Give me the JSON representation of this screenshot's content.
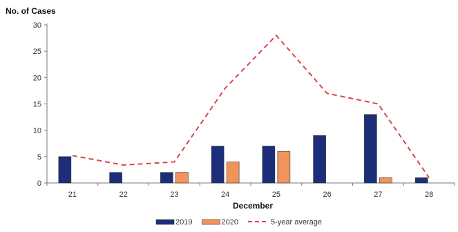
{
  "chart_data": {
    "type": "bar",
    "ylabel": "No. of Cases",
    "xlabel": "December",
    "categories": [
      "21",
      "22",
      "23",
      "24",
      "25",
      "26",
      "27",
      "28"
    ],
    "ylim": [
      0,
      30
    ],
    "yticks": [
      0,
      5,
      10,
      15,
      20,
      25,
      30
    ],
    "series": [
      {
        "name": "2019",
        "kind": "bar",
        "color": "#1c2e7a",
        "values": [
          5,
          2,
          2,
          7,
          7,
          9,
          13,
          1
        ]
      },
      {
        "name": "2020",
        "kind": "bar",
        "color": "#f0945b",
        "values": [
          null,
          null,
          2,
          4,
          6,
          null,
          1,
          null
        ]
      },
      {
        "name": "5-year average",
        "kind": "line",
        "style": "dashed",
        "color": "#e0404a",
        "values": [
          5.2,
          3.4,
          4,
          18,
          28,
          17,
          15,
          1
        ]
      }
    ],
    "legend_position": "bottom",
    "grid": false
  }
}
